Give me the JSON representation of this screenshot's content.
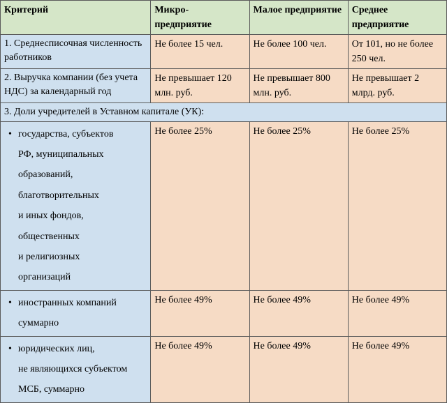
{
  "colors": {
    "header_bg": "#d5e6c8",
    "blue_bg": "#cfe0ef",
    "peach_bg": "#f6dbc5",
    "border": "#5a5a5a"
  },
  "header": {
    "criteria": "Критерий",
    "micro": "Микро-предприятие",
    "small": "Малое предприятие",
    "medium": "Среднее предприятие"
  },
  "rows": {
    "r1": {
      "criteria": "1. Среднесписочная численность работников",
      "micro": "Не более 15 чел.",
      "small": "Не более 100 чел.",
      "medium": "От 101, но не более 250 чел."
    },
    "r2": {
      "criteria": "2. Выручка компании (без учета НДС) за календарный год",
      "micro": "Не превышает 120 млн. руб.",
      "small": "Не превышает 800 млн. руб.",
      "medium": "Не превышает 2 млрд. руб."
    },
    "r3": {
      "criteria": "3. Доли учредителей в Уставном капитале (УК):"
    },
    "r4": {
      "li1": "государства, субъектов",
      "li2": "РФ, муниципальных",
      "li3": "образований,",
      "li4": "благотворительных",
      "li5": "и иных фондов,",
      "li6": "общественных",
      "li7": "и религиозных",
      "li8": "организаций",
      "micro": "Не более 25%",
      "small": "Не более 25%",
      "medium": "Не более 25%"
    },
    "r5": {
      "li1": "иностранных компаний",
      "li2": "суммарно",
      "micro": "Не более 49%",
      "small": "Не более 49%",
      "medium": "Не более 49%"
    },
    "r6": {
      "li1": "юридических лиц,",
      "li2": "не являющихся субъектом",
      "li3": "МСБ, суммарно",
      "micro": "Не более 49%",
      "small": "Не более 49%",
      "medium": "Не более 49%"
    }
  }
}
